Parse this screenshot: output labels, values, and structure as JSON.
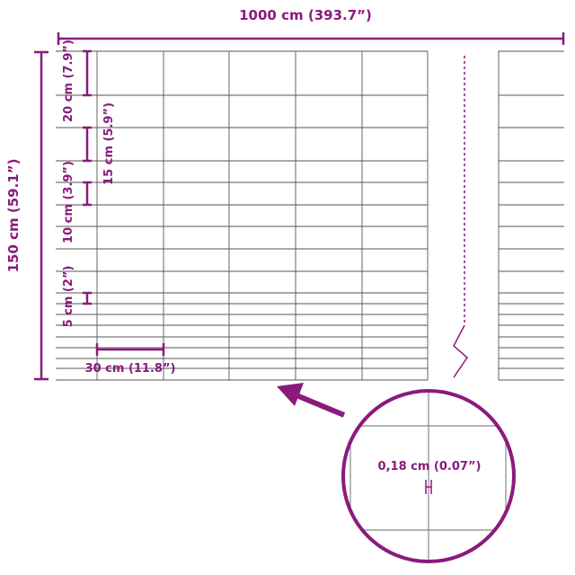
{
  "labels": {
    "width": "1000 cm (393.7”)",
    "height": "150 cm (59.1”)",
    "spacing_20": "20 cm (7.9”)",
    "spacing_15": "15 cm (5.9”)",
    "spacing_10": "10 cm (3.9”)",
    "spacing_5": "5 cm (2”)",
    "mesh_width": "30 cm (11.8”)",
    "wire_diameter": "0,18 cm (0.07”)"
  },
  "colors": {
    "accent": "#8a1a7d",
    "wire": "#555555"
  }
}
